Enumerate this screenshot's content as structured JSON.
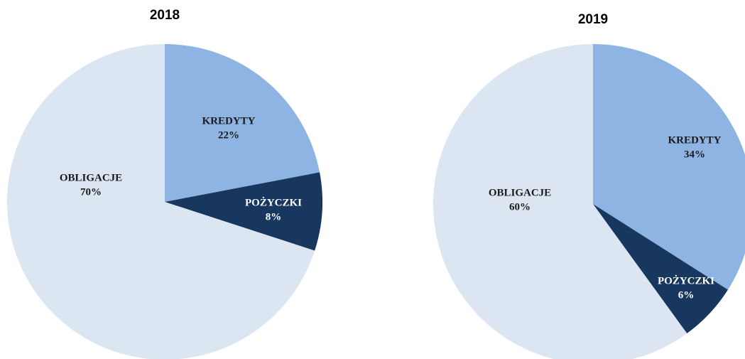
{
  "chart_data": [
    {
      "type": "pie",
      "title": "2018",
      "categories": [
        "KREDYTY",
        "POŻYCZKI",
        "OBLIGACJE"
      ],
      "values": [
        22,
        8,
        70
      ],
      "value_labels": [
        "22%",
        "8%",
        "70%"
      ],
      "colors": [
        "#8eb4e3",
        "#17375e",
        "#dce6f2"
      ]
    },
    {
      "type": "pie",
      "title": "2019",
      "categories": [
        "KREDYTY",
        "POŻYCZKI",
        "OBLIGACJE"
      ],
      "values": [
        34,
        6,
        60
      ],
      "value_labels": [
        "34%",
        "6%",
        "60%"
      ],
      "colors": [
        "#8eb4e3",
        "#17375e",
        "#dce6f2"
      ]
    }
  ]
}
